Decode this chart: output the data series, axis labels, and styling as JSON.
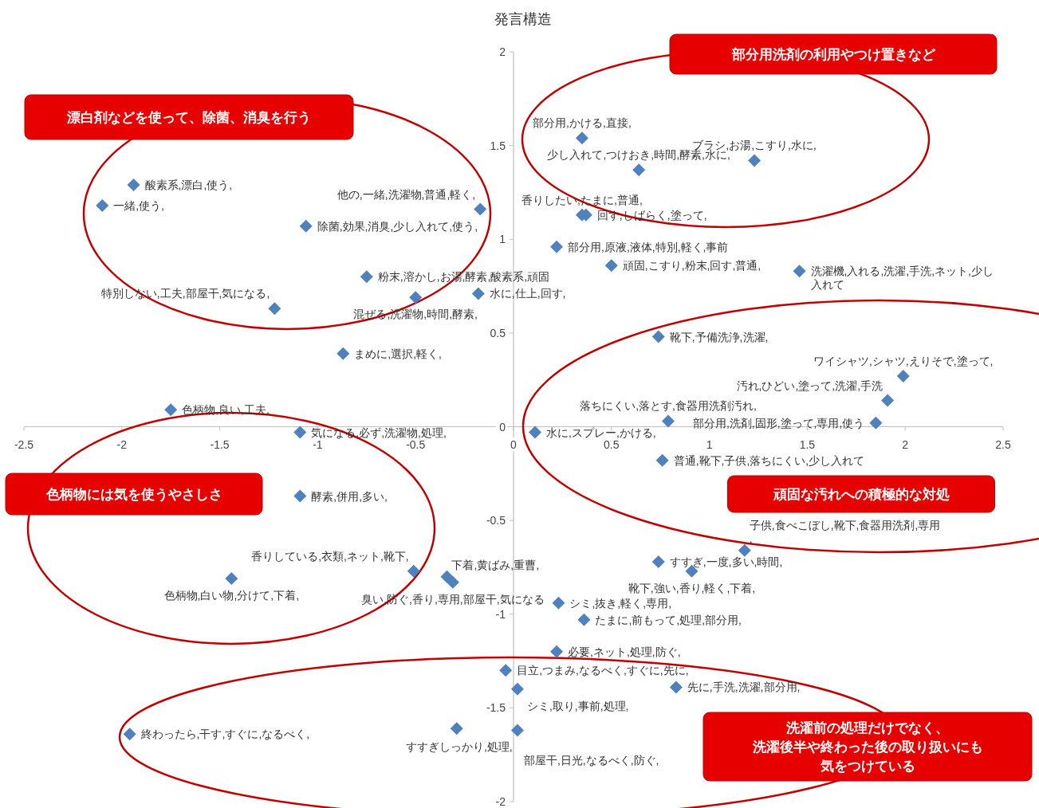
{
  "chart_data": {
    "type": "scatter",
    "title": "発言構造",
    "color": "#4f81bd",
    "marker": "diamond",
    "xlim": [
      -2.5,
      2.5
    ],
    "ylim": [
      -2,
      2
    ],
    "xticks": [
      -2.5,
      -2,
      -1.5,
      -1,
      -0.5,
      0,
      0.5,
      1,
      1.5,
      2,
      2.5
    ],
    "yticks": [
      -2,
      -1.5,
      -1,
      -0.5,
      0,
      0.5,
      1,
      1.5,
      2
    ],
    "x": [
      -1.94,
      -2.1,
      -1.06,
      -0.17,
      -0.75,
      -1.22,
      -0.5,
      -0.18,
      -0.87,
      0.35,
      1.23,
      0.64,
      0.35,
      0.37,
      0.22,
      0.5,
      1.46,
      0.74,
      1.99,
      1.91,
      1.85,
      0.79,
      0.11,
      0.76,
      -1.75,
      -1.09,
      -1.09,
      -1.44,
      -0.51,
      -0.34,
      -0.31,
      0.23,
      0.36,
      1.18,
      0.74,
      0.91,
      0.22,
      -0.04,
      0.02,
      0.83,
      0.02,
      -0.29,
      -1.96
    ],
    "values": [
      1.29,
      1.18,
      1.07,
      1.16,
      0.8,
      0.63,
      0.69,
      0.71,
      0.39,
      1.54,
      1.42,
      1.37,
      1.13,
      1.13,
      0.96,
      0.86,
      0.83,
      0.48,
      0.27,
      0.14,
      0.02,
      0.03,
      -0.03,
      -0.18,
      0.09,
      -0.03,
      -0.37,
      -0.81,
      -0.77,
      -0.8,
      -0.83,
      -0.94,
      -1.03,
      -0.66,
      -0.72,
      -0.77,
      -1.2,
      -1.3,
      -1.4,
      -1.39,
      -1.62,
      -1.61,
      -1.64
    ],
    "value_labels": [
      "酸素系,漂白,使う,",
      "一緒,使う,",
      "除菌,効果,消臭,少し入れて,使う,",
      "他の,一緒,洗濯物,普通,軽く,",
      "粉末,溶かし,お湯,酵素,酸素系,頑固",
      "特別しない,工夫,部屋干,気になる,",
      "混ぜる,洗濯物,時間,酵素,",
      "水に,仕上,回す,",
      "まめに,選択,軽く,",
      "部分用,かける,直接,",
      "ブラシ,お湯,こすり,水に,",
      "少し入れて,つけおき,時間,酵素,水に,",
      "香りしたい,たまに,普通,",
      "回す,しばらく,塗って,",
      "部分用,原液,液体,特別,軽く,事前",
      "頑固,こすり,粉末,回す,普通,",
      "洗濯機,入れる,洗濯,手洗,ネット,少し入れて",
      "靴下,予備洗浄,洗濯,",
      "ワイシャツ,シャツ,えりそで,塗って,",
      "汚れ,ひどい,塗って,洗濯,手洗",
      "部分用,洗剤,固形,塗って,専用,使う",
      "落ちにくい,落とす,食器用洗剤汚れ,",
      "水に,スプレー,かける,",
      "普通,靴下,子供,落ちにくい,少し入れて",
      "色柄物,良い,工夫,",
      "気になる,必ず,洗濯物,処理,",
      "酵素,併用,多い,",
      "色柄物,白い物,分けて,下着,",
      "香りしている,衣類,ネット,靴下,",
      "下着,黄ばみ,重曹,",
      "臭い,防ぐ,香り,専用,部屋干,気になる",
      "シミ,抜き,軽く,専用,",
      "たまに,前もって,処理,部分用,",
      "子供,食べこぼし,靴下,食器用洗剤,専用,",
      "すすぎ,一度,多い,時間,",
      "靴下,強い,香り,軽く,下着,",
      "必要,ネット,処理,防ぐ,",
      "目立,つまみ,なるべく,すぐに,先に,",
      "シミ,取り,事前,処理,",
      "先に,手洗,洗濯,部分用,",
      "部屋干,日光,なるべく,防ぐ,",
      "すすぎしっかり,処理,",
      "終わったら,干す,すぐに,なるべく,"
    ],
    "annotations": [
      "部分用洗剤の利用やつけ置きなど",
      "漂白剤などを使って、除菌、消臭を行う",
      "色柄物には気を使うやさしさ",
      "頑固な汚れへの積極的な対処",
      "洗濯前の処理だけでなく、洗濯後半や終わった後の取り扱いにも気をつけている"
    ]
  }
}
